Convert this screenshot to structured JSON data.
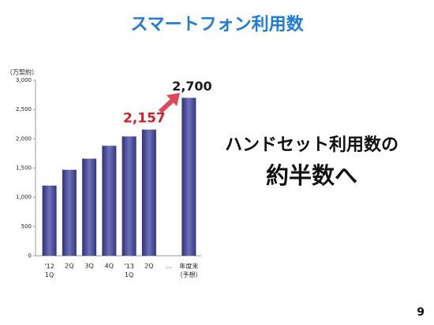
{
  "chart_data": {
    "type": "bar",
    "title": "スマートフォン利用数",
    "y_label": "（万契約）",
    "categories": [
      "'12\n1Q",
      "2Q",
      "3Q",
      "4Q",
      "'13\n1Q",
      "2Q",
      "…",
      "年度末\n（予想）"
    ],
    "values": [
      1200,
      1470,
      1660,
      1880,
      2040,
      2157,
      null,
      2700
    ],
    "value_labels": [
      null,
      null,
      null,
      null,
      null,
      "2,157",
      null,
      "2,700"
    ],
    "value_label_colors": [
      null,
      null,
      null,
      null,
      null,
      "#d0202e",
      null,
      "#1a1a1a"
    ],
    "color": "#454896",
    "ylim": [
      0,
      3000
    ],
    "yticks": [
      0,
      500,
      {
        "value": 1000,
        "label": "1,000"
      },
      {
        "value": 1500,
        "label": "1,500"
      },
      {
        "value": 2000,
        "label": "2,000"
      },
      {
        "value": 2500,
        "label": "2,500"
      },
      {
        "value": 3000,
        "label": "3,000"
      }
    ],
    "message": [
      "ハンドセット利用数の",
      "約半数へ"
    ],
    "page_number": "9"
  }
}
